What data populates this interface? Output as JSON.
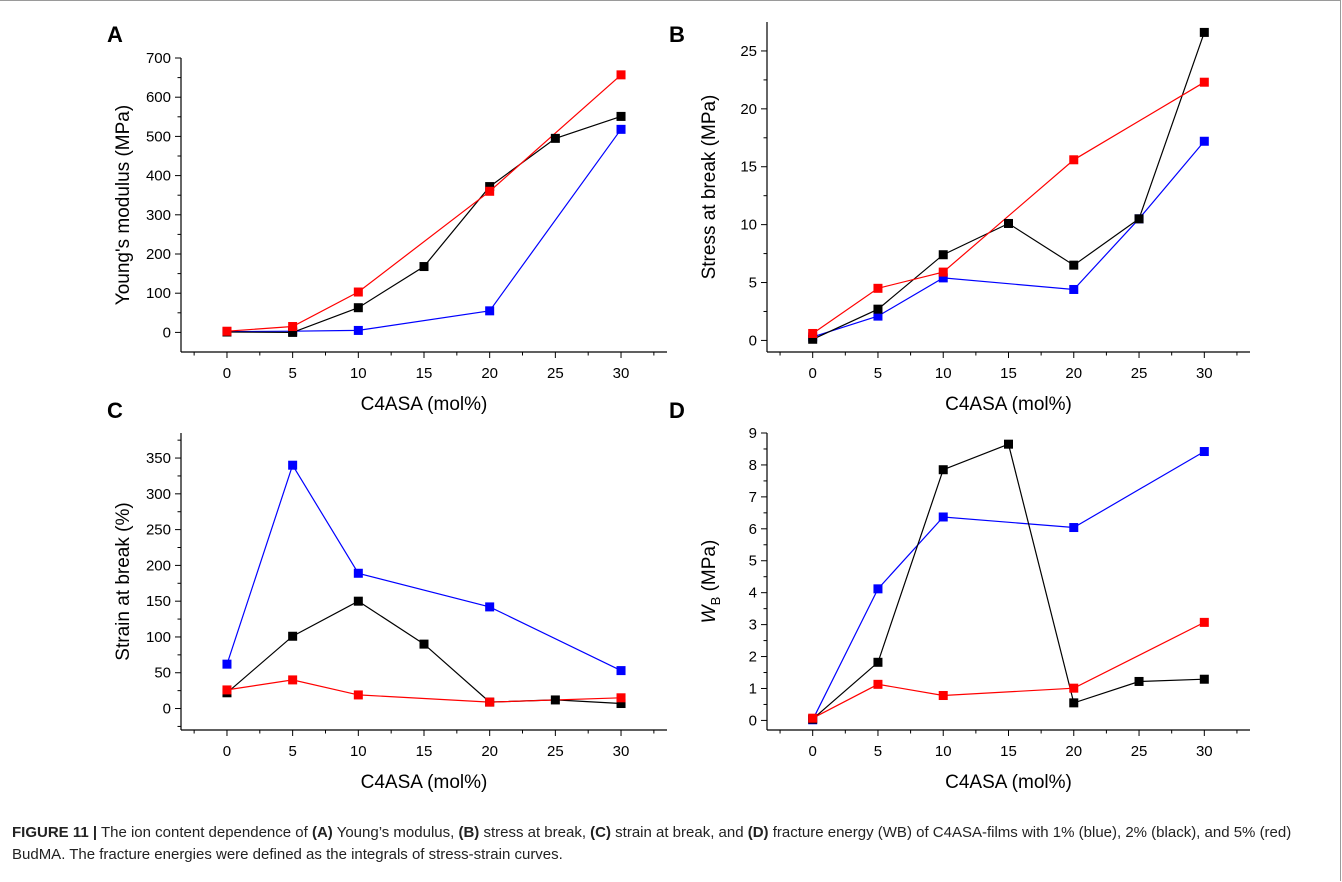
{
  "chart_data": [
    {
      "type": "line",
      "panel_label": "A",
      "xlabel": "C4ASA (mol%)",
      "ylabel": "Young's modulus (MPa)",
      "xlim": [
        -3.5,
        33.5
      ],
      "ylim": [
        -50,
        700
      ],
      "xticks": [
        "0",
        "5",
        "10",
        "15",
        "20",
        "25",
        "30"
      ],
      "yticks": [
        "0",
        "100",
        "200",
        "300",
        "400",
        "500",
        "600",
        "700"
      ],
      "series": [
        {
          "color": "#0000ff",
          "x": [
            0,
            5,
            10,
            20,
            30
          ],
          "y": [
            2,
            3,
            5,
            55,
            518
          ]
        },
        {
          "color": "#000000",
          "x": [
            0,
            5,
            10,
            15,
            20,
            25,
            30
          ],
          "y": [
            1,
            0,
            63,
            168,
            372,
            495,
            551
          ]
        },
        {
          "color": "#ff0000",
          "x": [
            0,
            5,
            10,
            20,
            30
          ],
          "y": [
            3,
            15,
            103,
            360,
            657
          ]
        }
      ]
    },
    {
      "type": "line",
      "panel_label": "B",
      "xlabel": "C4ASA (mol%)",
      "ylabel": "Stress at break (MPa)",
      "xlim": [
        -3.5,
        33.5
      ],
      "ylim": [
        -1,
        27.5
      ],
      "xticks": [
        "0",
        "5",
        "10",
        "15",
        "20",
        "25",
        "30"
      ],
      "yticks": [
        "0",
        "5",
        "10",
        "15",
        "20",
        "25"
      ],
      "series": [
        {
          "color": "#0000ff",
          "x": [
            0,
            5,
            10,
            20,
            25,
            30
          ],
          "y": [
            0.3,
            2.1,
            5.4,
            4.4,
            10.5,
            17.2
          ]
        },
        {
          "color": "#000000",
          "x": [
            0,
            5,
            10,
            15,
            20,
            25,
            30
          ],
          "y": [
            0.1,
            2.7,
            7.4,
            10.1,
            6.5,
            10.5,
            26.6
          ]
        },
        {
          "color": "#ff0000",
          "x": [
            0,
            5,
            10,
            20,
            30
          ],
          "y": [
            0.6,
            4.5,
            5.9,
            15.6,
            22.3
          ]
        }
      ]
    },
    {
      "type": "line",
      "panel_label": "C",
      "xlabel": "C4ASA (mol%)",
      "ylabel": "Strain at break (%)",
      "xlim": [
        -3.5,
        33.5
      ],
      "ylim": [
        -30,
        385
      ],
      "xticks": [
        "0",
        "5",
        "10",
        "15",
        "20",
        "25",
        "30"
      ],
      "yticks": [
        "0",
        "50",
        "100",
        "150",
        "200",
        "250",
        "300",
        "350"
      ],
      "series": [
        {
          "color": "#0000ff",
          "x": [
            0,
            5,
            10,
            20,
            30
          ],
          "y": [
            62,
            340,
            189,
            142,
            53
          ]
        },
        {
          "color": "#000000",
          "x": [
            0,
            5,
            10,
            15,
            20,
            25,
            30
          ],
          "y": [
            22,
            101,
            150,
            90,
            9,
            12,
            7
          ]
        },
        {
          "color": "#ff0000",
          "x": [
            0,
            5,
            10,
            20,
            30
          ],
          "y": [
            26,
            40,
            19,
            9,
            15
          ]
        }
      ]
    },
    {
      "type": "line",
      "panel_label": "D",
      "xlabel": "C4ASA (mol%)",
      "ylabel_main": "W",
      "ylabel_sub": "B",
      "ylabel_unit": " (MPa)",
      "xlim": [
        -3.5,
        33.5
      ],
      "ylim": [
        -0.3,
        9
      ],
      "xticks": [
        "0",
        "5",
        "10",
        "15",
        "20",
        "25",
        "30"
      ],
      "yticks": [
        "0",
        "1",
        "2",
        "3",
        "4",
        "5",
        "6",
        "7",
        "8",
        "9"
      ],
      "series": [
        {
          "color": "#0000ff",
          "x": [
            0,
            5,
            10,
            20,
            30
          ],
          "y": [
            0.02,
            4.12,
            6.37,
            6.04,
            8.42
          ]
        },
        {
          "color": "#000000",
          "x": [
            0,
            5,
            10,
            15,
            20,
            25,
            30
          ],
          "y": [
            0.04,
            1.82,
            7.85,
            8.65,
            0.55,
            1.22,
            1.29
          ]
        },
        {
          "color": "#ff0000",
          "x": [
            0,
            5,
            10,
            20,
            30
          ],
          "y": [
            0.07,
            1.13,
            0.78,
            1.01,
            3.07
          ]
        }
      ]
    }
  ],
  "caption": {
    "figure_label": "FIGURE 11 |",
    "t1": " The ion content dependence of ",
    "b1": "(A)",
    "t2": " Young’s modulus, ",
    "b2": "(B)",
    "t3": " stress at break, ",
    "b3": "(C)",
    "t4": " strain at break, and ",
    "b4": "(D)",
    "t5": " fracture energy (WB) of C4ASA-films with 1% (blue), 2% (black), and 5% (red) BudMA. The fracture energies were defined as the integrals of stress-strain curves."
  }
}
